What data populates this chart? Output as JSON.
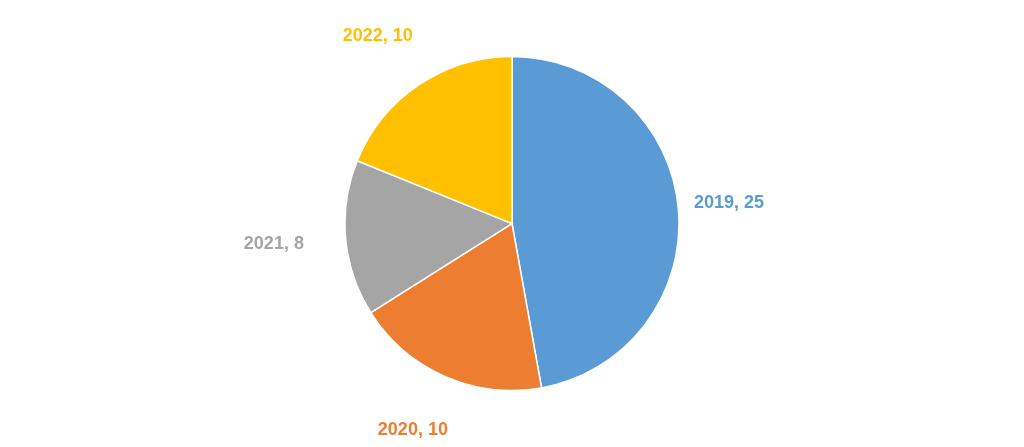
{
  "chart_data": {
    "type": "pie",
    "categories": [
      "2019",
      "2020",
      "2021",
      "2022"
    ],
    "values": [
      25,
      10,
      8,
      10
    ],
    "colors": [
      "#5b9bd5",
      "#ed7d31",
      "#a5a5a5",
      "#ffc000"
    ],
    "value_labels": [
      ", 25",
      ", 10",
      ", 8",
      ", 10"
    ],
    "legend": false
  }
}
